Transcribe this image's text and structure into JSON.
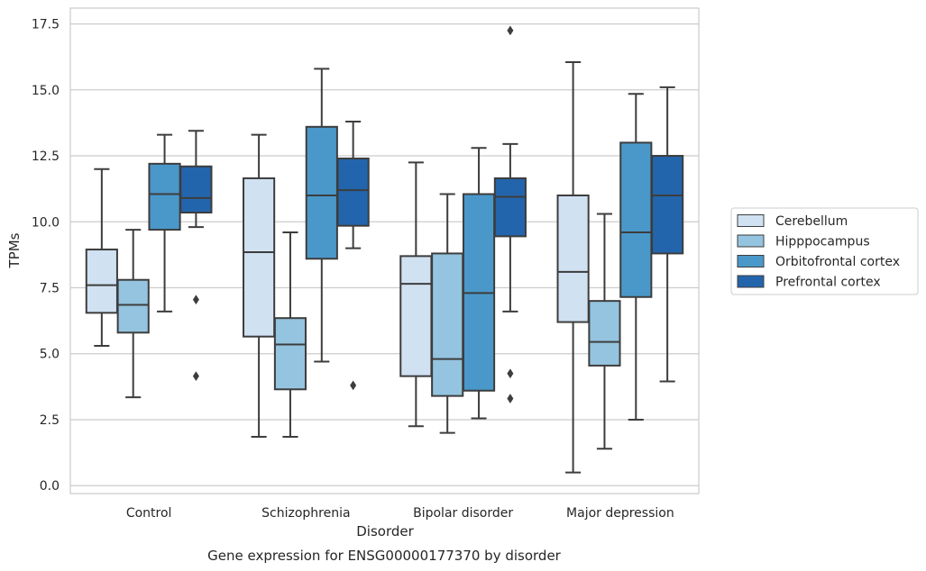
{
  "caption": "Gene expression for ENSG00000177370 by disorder",
  "chart_data": {
    "type": "boxplot",
    "xlabel": "Disorder",
    "ylabel": "TPMs",
    "ylim": [
      -0.3,
      18.1
    ],
    "yticks": [
      0.0,
      2.5,
      5.0,
      7.5,
      10.0,
      12.5,
      15.0,
      17.5
    ],
    "ytick_labels": [
      "0.0",
      "2.5",
      "5.0",
      "7.5",
      "10.0",
      "12.5",
      "15.0",
      "17.5"
    ],
    "categories": [
      "Control",
      "Schizophrenia",
      "Bipolar disorder",
      "Major depression"
    ],
    "grid": "horizontal",
    "legend_position": "right",
    "series": [
      {
        "name": "Cerebellum",
        "color": "#d0e1f2",
        "boxes": [
          {
            "whisker_low": 5.3,
            "q1": 6.55,
            "median": 7.6,
            "q3": 8.95,
            "whisker_high": 12.0,
            "outliers": []
          },
          {
            "whisker_low": 1.85,
            "q1": 5.65,
            "median": 8.85,
            "q3": 11.65,
            "whisker_high": 13.3,
            "outliers": []
          },
          {
            "whisker_low": 2.25,
            "q1": 4.15,
            "median": 7.65,
            "q3": 8.7,
            "whisker_high": 12.25,
            "outliers": []
          },
          {
            "whisker_low": 0.5,
            "q1": 6.2,
            "median": 8.1,
            "q3": 11.0,
            "whisker_high": 16.05,
            "outliers": []
          }
        ]
      },
      {
        "name": "Hipppocampus",
        "color": "#94c4df",
        "boxes": [
          {
            "whisker_low": 3.35,
            "q1": 5.8,
            "median": 6.85,
            "q3": 7.8,
            "whisker_high": 9.7,
            "outliers": []
          },
          {
            "whisker_low": 1.85,
            "q1": 3.65,
            "median": 5.35,
            "q3": 6.35,
            "whisker_high": 9.6,
            "outliers": []
          },
          {
            "whisker_low": 2.0,
            "q1": 3.4,
            "median": 4.8,
            "q3": 8.8,
            "whisker_high": 11.05,
            "outliers": []
          },
          {
            "whisker_low": 1.4,
            "q1": 4.55,
            "median": 5.45,
            "q3": 7.0,
            "whisker_high": 10.3,
            "outliers": []
          }
        ]
      },
      {
        "name": "Orbitofrontal cortex",
        "color": "#4a98c9",
        "boxes": [
          {
            "whisker_low": 6.6,
            "q1": 9.7,
            "median": 11.05,
            "q3": 12.2,
            "whisker_high": 13.3,
            "outliers": []
          },
          {
            "whisker_low": 4.7,
            "q1": 8.6,
            "median": 11.0,
            "q3": 13.6,
            "whisker_high": 15.8,
            "outliers": []
          },
          {
            "whisker_low": 2.55,
            "q1": 3.6,
            "median": 7.3,
            "q3": 11.05,
            "whisker_high": 12.8,
            "outliers": []
          },
          {
            "whisker_low": 2.5,
            "q1": 7.15,
            "median": 9.6,
            "q3": 13.0,
            "whisker_high": 14.85,
            "outliers": []
          }
        ]
      },
      {
        "name": "Prefrontal cortex",
        "color": "#2365ac",
        "boxes": [
          {
            "whisker_low": 9.8,
            "q1": 10.35,
            "median": 10.9,
            "q3": 12.1,
            "whisker_high": 13.45,
            "outliers": [
              7.05,
              4.15
            ]
          },
          {
            "whisker_low": 9.0,
            "q1": 9.85,
            "median": 11.2,
            "q3": 12.4,
            "whisker_high": 13.8,
            "outliers": [
              3.8
            ]
          },
          {
            "whisker_low": 6.6,
            "q1": 9.45,
            "median": 10.95,
            "q3": 11.65,
            "whisker_high": 12.95,
            "outliers": [
              17.25,
              4.25,
              3.3
            ]
          },
          {
            "whisker_low": 3.95,
            "q1": 8.8,
            "median": 11.0,
            "q3": 12.5,
            "whisker_high": 15.1,
            "outliers": []
          }
        ]
      }
    ]
  }
}
